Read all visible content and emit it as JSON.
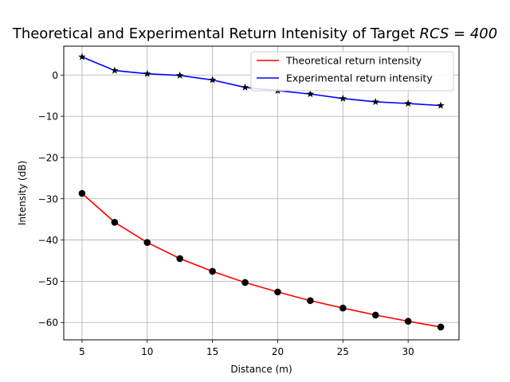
{
  "chart_data": {
    "type": "line",
    "title": "Theoretical and Experimental Return Intenisity of Target RCS = 400",
    "title_plain": "Theoretical and Experimental Return Intenisity of Target ",
    "title_math": "RCS = 400",
    "xlabel": "Distance (m)",
    "ylabel": "Intensity (dB)",
    "xlim": [
      3.6,
      33.9
    ],
    "ylim": [
      -64.2,
      7.0
    ],
    "xticks": [
      5,
      10,
      15,
      20,
      25,
      30
    ],
    "yticks": [
      -60,
      -50,
      -40,
      -30,
      -20,
      -10,
      0
    ],
    "ytick_labels": [
      "−60",
      "−50",
      "−40",
      "−30",
      "−20",
      "−10",
      "0"
    ],
    "grid": true,
    "legend_position": "top-right",
    "x": [
      5,
      7.5,
      10,
      12.5,
      15,
      17.5,
      20,
      22.5,
      25,
      27.5,
      30,
      32.5
    ],
    "series": [
      {
        "name": "Theoretical return intensity",
        "color": "#ff0000",
        "marker": "circle",
        "values": [
          -28.7,
          -35.7,
          -40.6,
          -44.5,
          -47.6,
          -50.3,
          -52.6,
          -54.7,
          -56.5,
          -58.2,
          -59.7,
          -61.1
        ]
      },
      {
        "name": "Experimental return intensity",
        "color": "#0000ff",
        "marker": "star",
        "values": [
          4.4,
          1.1,
          0.3,
          -0.1,
          -1.2,
          -3.0,
          -3.8,
          -4.6,
          -5.7,
          -6.5,
          -6.9,
          -7.4
        ]
      }
    ]
  }
}
